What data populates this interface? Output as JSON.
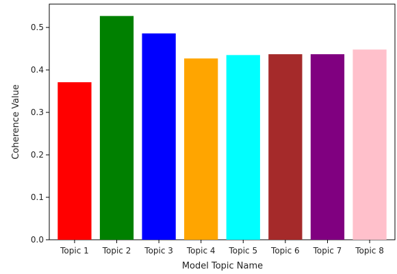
{
  "chart_data": {
    "type": "bar",
    "title": "",
    "xlabel": "Model Topic Name",
    "ylabel": "Coherence Value",
    "categories": [
      "Topic 1",
      "Topic 2",
      "Topic 3",
      "Topic 4",
      "Topic 5",
      "Topic 6",
      "Topic 7",
      "Topic 8"
    ],
    "values": [
      0.371,
      0.527,
      0.486,
      0.427,
      0.435,
      0.437,
      0.437,
      0.448
    ],
    "colors": [
      "#ff0000",
      "#008000",
      "#0000ff",
      "#ffa500",
      "#00ffff",
      "#a52a2a",
      "#800080",
      "#ffc0cb"
    ],
    "ylim": [
      0,
      0.555
    ],
    "yticks": [
      0.0,
      0.1,
      0.2,
      0.3,
      0.4,
      0.5
    ],
    "ytick_labels": [
      "0.0",
      "0.1",
      "0.2",
      "0.3",
      "0.4",
      "0.5"
    ],
    "grid": false,
    "legend": false
  }
}
